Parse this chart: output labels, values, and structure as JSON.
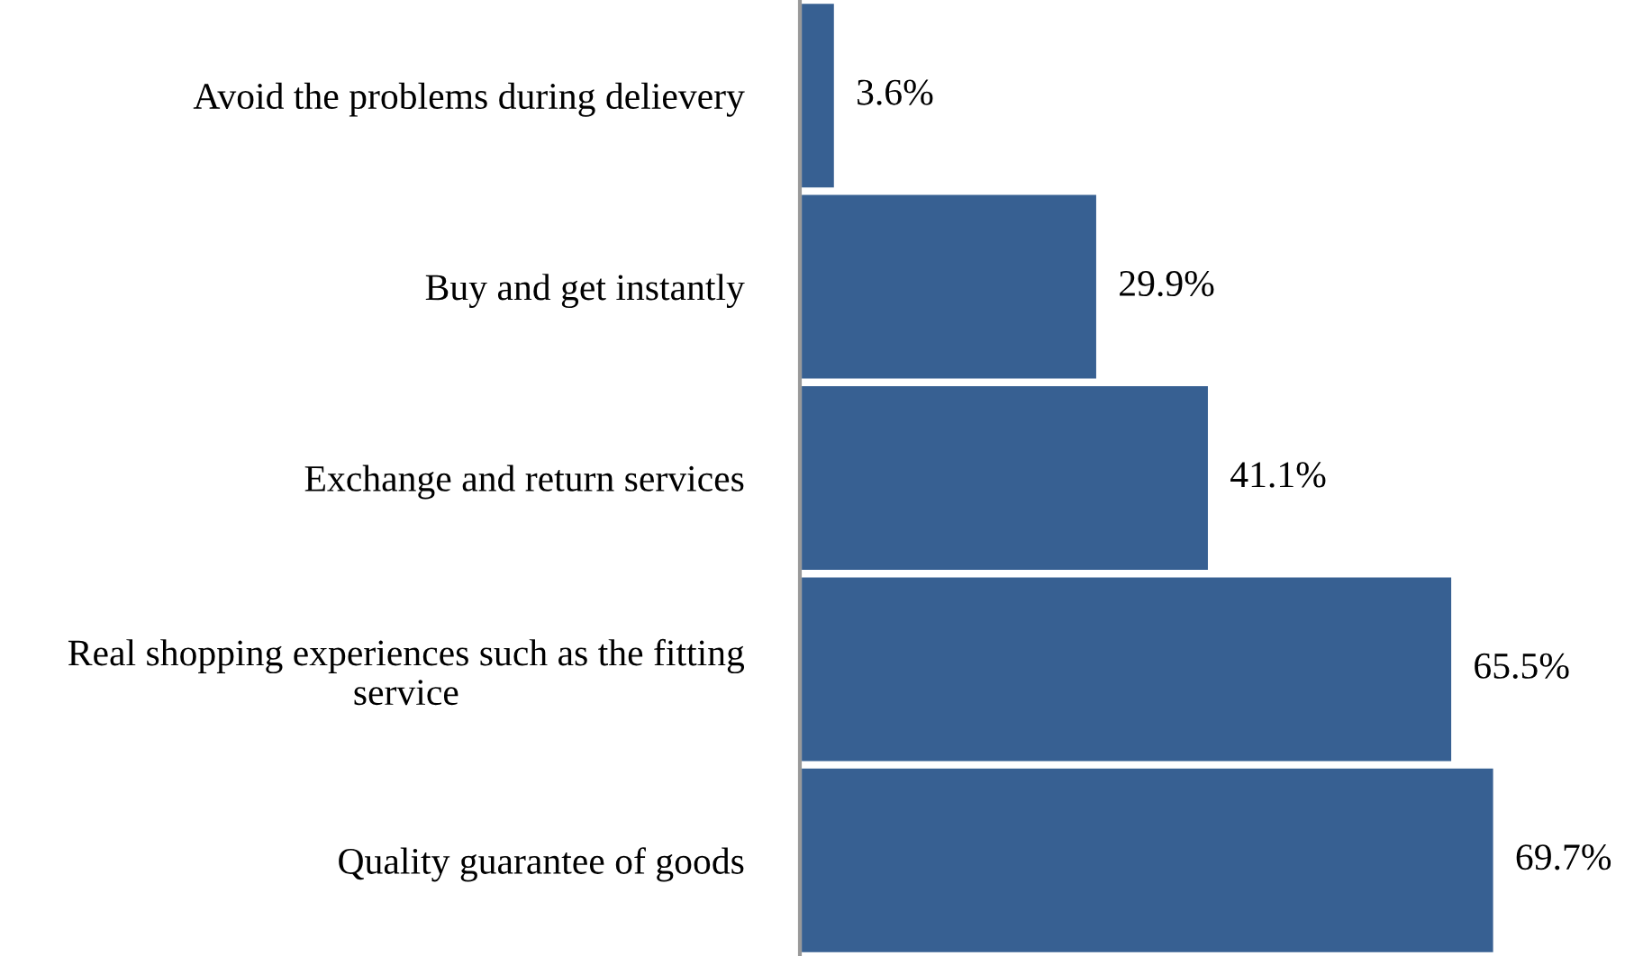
{
  "chart_data": {
    "type": "bar",
    "orientation": "horizontal",
    "categories": [
      "Avoid the problems during delievery",
      "Buy and get instantly",
      "Exchange and return services",
      "Real shopping experiences such as the fitting service",
      "Quality guarantee of goods"
    ],
    "values": [
      3.6,
      29.9,
      41.1,
      65.5,
      69.7
    ],
    "value_labels": [
      "3.6%",
      "29.9%",
      "41.1%",
      "65.5%",
      "69.7%"
    ],
    "color": "#376092",
    "grid": false,
    "legend": false
  }
}
